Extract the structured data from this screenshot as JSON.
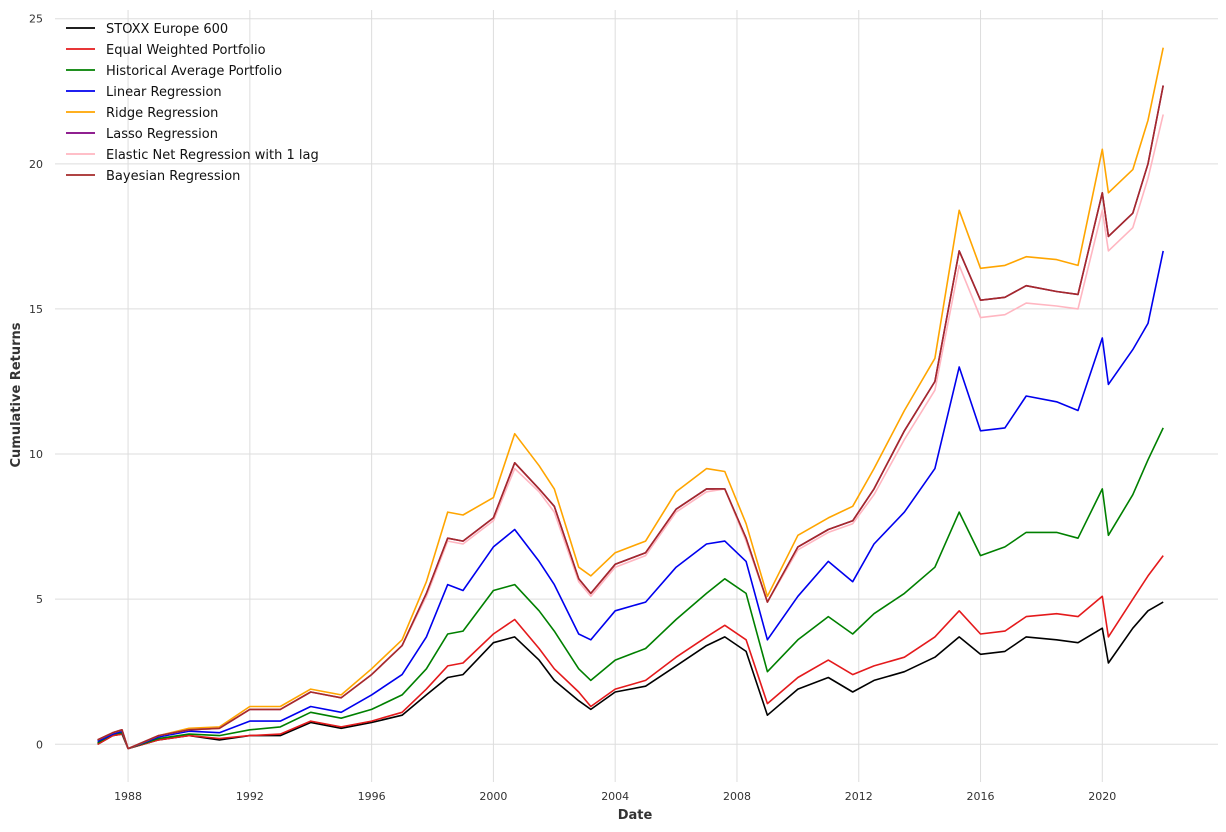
{
  "chart_data": {
    "type": "line",
    "xlabel": "Date",
    "ylabel": "Cumulative Returns",
    "xlim": [
      1985.6,
      2023.8
    ],
    "ylim": [
      -1.3,
      25.3
    ],
    "grid": true,
    "legend_position": "top-left",
    "x_ticks": [
      1988,
      1992,
      1996,
      2000,
      2004,
      2008,
      2012,
      2016,
      2020
    ],
    "x_tick_labels": [
      "1988",
      "1992",
      "1996",
      "2000",
      "2004",
      "2008",
      "2012",
      "2016",
      "2020"
    ],
    "y_ticks": [
      0,
      5,
      10,
      15,
      20,
      25
    ],
    "y_tick_labels": [
      "0",
      "5",
      "10",
      "15",
      "20",
      "25"
    ],
    "x": [
      1987.0,
      1987.5,
      1987.8,
      1988.0,
      1989.0,
      1990.0,
      1991.0,
      1992.0,
      1993.0,
      1994.0,
      1995.0,
      1996.0,
      1997.0,
      1997.8,
      1998.5,
      1999.0,
      2000.0,
      2000.7,
      2001.5,
      2002.0,
      2002.8,
      2003.2,
      2004.0,
      2005.0,
      2006.0,
      2007.0,
      2007.6,
      2008.3,
      2009.0,
      2010.0,
      2011.0,
      2011.8,
      2012.5,
      2013.5,
      2014.5,
      2015.3,
      2016.0,
      2016.8,
      2017.5,
      2018.5,
      2019.2,
      2020.0,
      2020.2,
      2021.0,
      2021.5,
      2022.0
    ],
    "series": [
      {
        "name": "STOXX Europe 600",
        "color": "#000000",
        "values": [
          0.0,
          0.3,
          0.35,
          -0.15,
          0.15,
          0.3,
          0.15,
          0.3,
          0.3,
          0.75,
          0.55,
          0.75,
          1.0,
          1.7,
          2.3,
          2.4,
          3.5,
          3.7,
          2.9,
          2.2,
          1.5,
          1.2,
          1.8,
          2.0,
          2.7,
          3.4,
          3.7,
          3.2,
          1.0,
          1.9,
          2.3,
          1.8,
          2.2,
          2.5,
          3.0,
          3.7,
          3.1,
          3.2,
          3.7,
          3.6,
          3.5,
          4.0,
          2.8,
          4.0,
          4.6,
          4.9
        ]
      },
      {
        "name": "Equal Weighted Portfolio",
        "color": "#e41a1c",
        "values": [
          0.0,
          0.3,
          0.35,
          -0.15,
          0.15,
          0.3,
          0.2,
          0.3,
          0.35,
          0.8,
          0.6,
          0.8,
          1.1,
          1.9,
          2.7,
          2.8,
          3.8,
          4.3,
          3.3,
          2.6,
          1.8,
          1.3,
          1.9,
          2.2,
          3.0,
          3.7,
          4.1,
          3.6,
          1.4,
          2.3,
          2.9,
          2.4,
          2.7,
          3.0,
          3.7,
          4.6,
          3.8,
          3.9,
          4.4,
          4.5,
          4.4,
          5.1,
          3.7,
          5.0,
          5.8,
          6.5
        ]
      },
      {
        "name": "Historical Average Portfolio",
        "color": "#008000",
        "values": [
          0.05,
          0.35,
          0.4,
          -0.15,
          0.2,
          0.35,
          0.3,
          0.5,
          0.6,
          1.1,
          0.9,
          1.2,
          1.7,
          2.6,
          3.8,
          3.9,
          5.3,
          5.5,
          4.6,
          3.9,
          2.6,
          2.2,
          2.9,
          3.3,
          4.3,
          5.2,
          5.7,
          5.2,
          2.5,
          3.6,
          4.4,
          3.8,
          4.5,
          5.2,
          6.1,
          8.0,
          6.5,
          6.8,
          7.3,
          7.3,
          7.1,
          8.8,
          7.2,
          8.6,
          9.8,
          10.9
        ]
      },
      {
        "name": "Linear Regression",
        "color": "#0000ee",
        "values": [
          0.1,
          0.35,
          0.45,
          -0.15,
          0.25,
          0.45,
          0.4,
          0.8,
          0.8,
          1.3,
          1.1,
          1.7,
          2.4,
          3.7,
          5.5,
          5.3,
          6.8,
          7.4,
          6.3,
          5.5,
          3.8,
          3.6,
          4.6,
          4.9,
          6.1,
          6.9,
          7.0,
          6.3,
          3.6,
          5.1,
          6.3,
          5.6,
          6.9,
          8.0,
          9.5,
          13.0,
          10.8,
          10.9,
          12.0,
          11.8,
          11.5,
          14.0,
          12.4,
          13.6,
          14.5,
          17.0
        ]
      },
      {
        "name": "Ridge Regression",
        "color": "#ffa500",
        "values": [
          0.15,
          0.4,
          0.5,
          -0.15,
          0.3,
          0.55,
          0.6,
          1.3,
          1.3,
          1.9,
          1.7,
          2.6,
          3.6,
          5.6,
          8.0,
          7.9,
          8.5,
          10.7,
          9.6,
          8.8,
          6.1,
          5.8,
          6.6,
          7.0,
          8.7,
          9.5,
          9.4,
          7.6,
          5.1,
          7.2,
          7.8,
          8.2,
          9.5,
          11.5,
          13.3,
          18.4,
          16.4,
          16.5,
          16.8,
          16.7,
          16.5,
          20.5,
          19.0,
          19.8,
          21.5,
          24.0
        ]
      },
      {
        "name": "Lasso Regression",
        "color": "#800080",
        "values": [
          0.15,
          0.4,
          0.5,
          -0.15,
          0.3,
          0.5,
          0.55,
          1.2,
          1.2,
          1.8,
          1.6,
          2.4,
          3.4,
          5.2,
          7.1,
          7.0,
          7.8,
          9.7,
          8.8,
          8.2,
          5.7,
          5.2,
          6.2,
          6.6,
          8.1,
          8.8,
          8.8,
          7.1,
          4.9,
          6.8,
          7.4,
          7.7,
          8.8,
          10.8,
          12.5,
          17.0,
          15.3,
          15.4,
          15.8,
          15.6,
          15.5,
          19.0,
          17.5,
          18.3,
          20.0,
          22.7
        ]
      },
      {
        "name": "Elastic Net Regression with 1 lag",
        "color": "#ffb6c1",
        "values": [
          0.15,
          0.4,
          0.5,
          -0.15,
          0.3,
          0.5,
          0.55,
          1.2,
          1.2,
          1.8,
          1.6,
          2.4,
          3.4,
          5.1,
          7.0,
          6.9,
          7.7,
          9.5,
          8.7,
          8.0,
          5.6,
          5.1,
          6.1,
          6.5,
          8.0,
          8.7,
          8.8,
          7.0,
          4.9,
          6.7,
          7.3,
          7.6,
          8.6,
          10.5,
          12.2,
          16.5,
          14.7,
          14.8,
          15.2,
          15.1,
          15.0,
          18.4,
          17.0,
          17.8,
          19.5,
          21.7
        ]
      },
      {
        "name": "Bayesian Regression",
        "color": "#a52a2a",
        "values": [
          0.15,
          0.4,
          0.5,
          -0.15,
          0.3,
          0.5,
          0.55,
          1.2,
          1.2,
          1.8,
          1.6,
          2.4,
          3.4,
          5.2,
          7.1,
          7.0,
          7.8,
          9.7,
          8.8,
          8.2,
          5.7,
          5.2,
          6.2,
          6.6,
          8.1,
          8.8,
          8.8,
          7.1,
          4.9,
          6.8,
          7.4,
          7.7,
          8.8,
          10.8,
          12.5,
          17.0,
          15.3,
          15.4,
          15.8,
          15.6,
          15.5,
          19.0,
          17.5,
          18.3,
          20.0,
          22.7
        ]
      }
    ]
  }
}
